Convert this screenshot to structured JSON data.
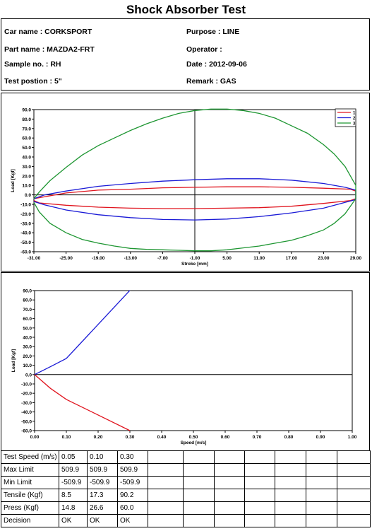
{
  "header": {
    "title": "Shock Absorber Test"
  },
  "info": {
    "car_name": "Car name : CORKSPORT",
    "purpose": "Purpose : LINE",
    "part_name": "Part name : MAZDA2-FRT",
    "operator": "Operator :",
    "sample_no": "Sample no. : RH",
    "date": "Date : 2012-09-06",
    "test_position": "Test postion : 5\"",
    "remark": "Remark : GAS"
  },
  "chart_data": [
    {
      "type": "line",
      "xlabel": "Stroke [mm]",
      "ylabel": "Load [Kgf]",
      "xlim": [
        -31,
        29
      ],
      "ylim": [
        -60,
        90
      ],
      "x_ticks": [
        "-31.00",
        "-25.00",
        "-19.00",
        "-13.00",
        "-7.00",
        "-1.00",
        "5.00",
        "11.00",
        "17.00",
        "23.00",
        "29.00"
      ],
      "y_ticks": [
        "90.0",
        "80.0",
        "70.0",
        "60.0",
        "50.0",
        "40.0",
        "30.0",
        "20.0",
        "10.0",
        "0.0",
        "-10.0",
        "-20.0",
        "-30.0",
        "-40.0",
        "-50.0",
        "-60.0"
      ],
      "grid": false,
      "legend_position": "top-right",
      "series": [
        {
          "name": "1",
          "color": "#e0141e",
          "upper": [
            [
              -31,
              -4
            ],
            [
              -25,
              2
            ],
            [
              -19,
              5
            ],
            [
              -13,
              6
            ],
            [
              -7,
              7.5
            ],
            [
              -1,
              8
            ],
            [
              5,
              8.5
            ],
            [
              11,
              8.5
            ],
            [
              17,
              8
            ],
            [
              23,
              7
            ],
            [
              28,
              6
            ],
            [
              29,
              4
            ]
          ],
          "lower": [
            [
              29,
              -4
            ],
            [
              28,
              -6
            ],
            [
              23,
              -9
            ],
            [
              17,
              -12
            ],
            [
              11,
              -13.5
            ],
            [
              5,
              -14
            ],
            [
              -1,
              -14.5
            ],
            [
              -7,
              -14.5
            ],
            [
              -13,
              -14
            ],
            [
              -19,
              -13
            ],
            [
              -25,
              -11
            ],
            [
              -30,
              -8.5
            ],
            [
              -31,
              -6
            ]
          ]
        },
        {
          "name": "2",
          "color": "#1a1ad6",
          "upper": [
            [
              -31,
              -4
            ],
            [
              -29,
              0
            ],
            [
              -25,
              4
            ],
            [
              -19,
              9
            ],
            [
              -13,
              12
            ],
            [
              -7,
              14.5
            ],
            [
              -1,
              16
            ],
            [
              5,
              17
            ],
            [
              11,
              17
            ],
            [
              17,
              15.5
            ],
            [
              23,
              12
            ],
            [
              27,
              8
            ],
            [
              29,
              5
            ]
          ],
          "lower": [
            [
              29,
              -5
            ],
            [
              27,
              -8
            ],
            [
              23,
              -14
            ],
            [
              17,
              -19
            ],
            [
              11,
              -23
            ],
            [
              5,
              -25.5
            ],
            [
              -1,
              -26.5
            ],
            [
              -7,
              -26
            ],
            [
              -13,
              -24
            ],
            [
              -19,
              -21
            ],
            [
              -25,
              -16
            ],
            [
              -29,
              -10.5
            ],
            [
              -31,
              -7
            ]
          ]
        },
        {
          "name": "3",
          "color": "#1e9632",
          "upper": [
            [
              -31,
              -4
            ],
            [
              -30,
              3
            ],
            [
              -28,
              15
            ],
            [
              -25,
              29
            ],
            [
              -22,
              42
            ],
            [
              -19,
              52
            ],
            [
              -16,
              60
            ],
            [
              -13,
              68
            ],
            [
              -10,
              75
            ],
            [
              -7,
              81
            ],
            [
              -4,
              86
            ],
            [
              -1,
              89
            ],
            [
              2,
              90.5
            ],
            [
              5,
              90.5
            ],
            [
              8,
              89
            ],
            [
              11,
              86
            ],
            [
              14,
              81
            ],
            [
              17,
              73
            ],
            [
              20,
              65
            ],
            [
              23,
              53
            ],
            [
              25,
              43
            ],
            [
              27,
              30
            ],
            [
              28,
              20
            ],
            [
              29,
              10
            ],
            [
              29,
              3
            ]
          ],
          "lower": [
            [
              29,
              -4
            ],
            [
              28,
              -12
            ],
            [
              27,
              -20
            ],
            [
              25,
              -30
            ],
            [
              23,
              -37
            ],
            [
              20,
              -43
            ],
            [
              17,
              -48
            ],
            [
              14,
              -51
            ],
            [
              11,
              -54
            ],
            [
              8,
              -56
            ],
            [
              5,
              -58
            ],
            [
              2,
              -59
            ],
            [
              -1,
              -59
            ],
            [
              -4,
              -58.5
            ],
            [
              -7,
              -58
            ],
            [
              -10,
              -57.5
            ],
            [
              -13,
              -56.5
            ],
            [
              -16,
              -54
            ],
            [
              -19,
              -51
            ],
            [
              -22,
              -47
            ],
            [
              -25,
              -40
            ],
            [
              -28,
              -30
            ],
            [
              -30,
              -18
            ],
            [
              -31,
              -8
            ]
          ]
        }
      ]
    },
    {
      "type": "line",
      "xlabel": "Speed [m/s]",
      "ylabel": "Load [Kgf]",
      "xlim": [
        0,
        1
      ],
      "ylim": [
        -60,
        90
      ],
      "x_ticks": [
        "0.00",
        "0.10",
        "0.20",
        "0.30",
        "0.40",
        "0.50",
        "0.60",
        "0.70",
        "0.80",
        "0.90",
        "1.00"
      ],
      "y_ticks": [
        "90.0",
        "80.0",
        "70.0",
        "60.0",
        "50.0",
        "40.0",
        "30.0",
        "20.0",
        "10.0",
        "0.0",
        "-10.0",
        "-20.0",
        "-30.0",
        "-40.0",
        "-50.0",
        "-60.0"
      ],
      "grid": false,
      "series": [
        {
          "color": "#1a1ad6",
          "x": [
            0.0,
            0.05,
            0.1,
            0.3
          ],
          "y": [
            0,
            8.5,
            17.3,
            90.2
          ]
        },
        {
          "color": "#e0141e",
          "x": [
            0.0,
            0.05,
            0.1,
            0.3
          ],
          "y": [
            0,
            -14.8,
            -26.6,
            -60.0
          ]
        }
      ]
    }
  ],
  "results_table": {
    "rows": [
      [
        "Test Speed (m/s)",
        "0.05",
        "0.10",
        "0.30",
        "",
        "",
        "",
        "",
        "",
        "",
        ""
      ],
      [
        "Max Limit",
        "509.9",
        "509.9",
        "509.9",
        "",
        "",
        "",
        "",
        "",
        "",
        ""
      ],
      [
        "Min Limit",
        "-509.9",
        "-509.9",
        "-509.9",
        "",
        "",
        "",
        "",
        "",
        "",
        ""
      ],
      [
        "Tensile (Kgf)",
        "8.5",
        "17.3",
        "90.2",
        "",
        "",
        "",
        "",
        "",
        "",
        ""
      ],
      [
        "Press (Kgf)",
        "14.8",
        "26.6",
        "60.0",
        "",
        "",
        "",
        "",
        "",
        "",
        ""
      ],
      [
        "Decision",
        "OK",
        "OK",
        "OK",
        "",
        "",
        "",
        "",
        "",
        "",
        ""
      ]
    ]
  }
}
